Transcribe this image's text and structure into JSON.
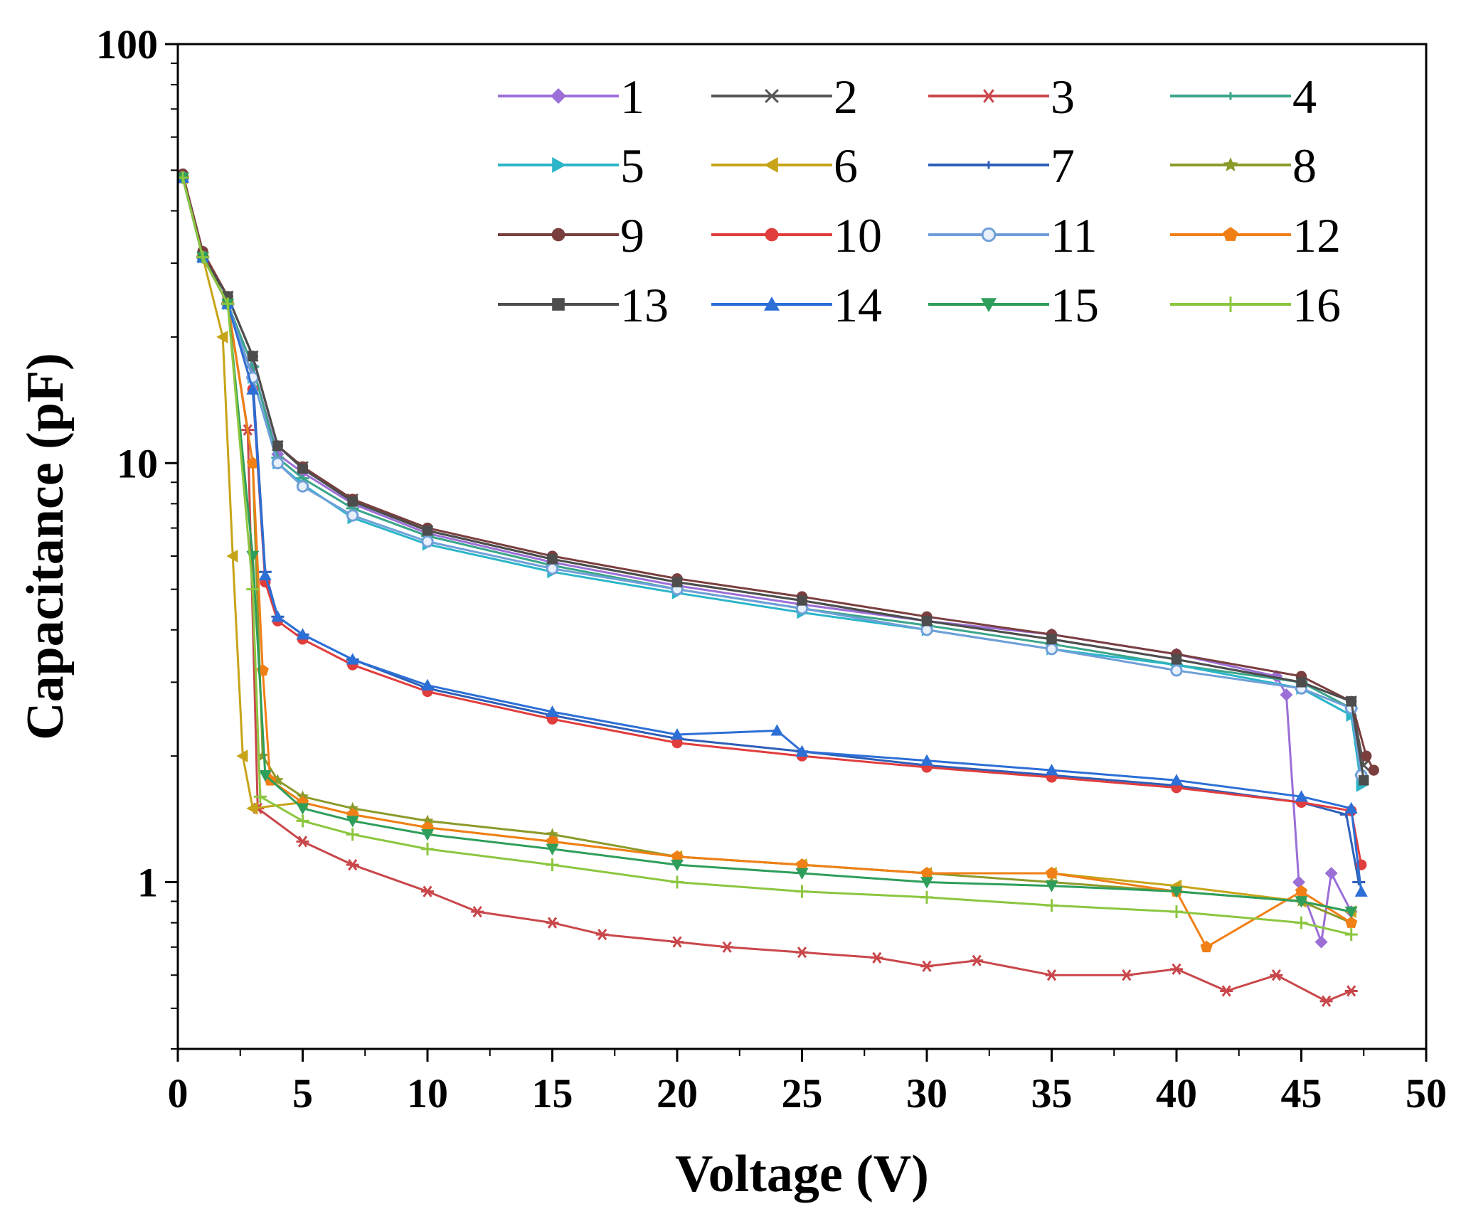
{
  "chart_data": {
    "type": "line",
    "title": "",
    "xlabel": "Voltage (V)",
    "ylabel": "Capacitance (pF)",
    "xlim": [
      0,
      50
    ],
    "ylim": [
      0.4,
      100
    ],
    "yscale": "log",
    "grid": false,
    "legend_position": "top-right",
    "x_ticks": [
      0,
      5,
      10,
      15,
      20,
      25,
      30,
      35,
      40,
      45,
      50
    ],
    "x_tick_labels": [
      "0",
      "5",
      "10",
      "15",
      "20",
      "25",
      "30",
      "35",
      "40",
      "45",
      "50"
    ],
    "y_ticks": [
      1,
      10,
      100
    ],
    "y_tick_labels": [
      "1",
      "10",
      "100"
    ],
    "series": [
      {
        "name": "1",
        "color": "#9b6fd6",
        "marker": "diamond",
        "points": [
          [
            0.2,
            48
          ],
          [
            1,
            31
          ],
          [
            2,
            24
          ],
          [
            3,
            17
          ],
          [
            4,
            10.5
          ],
          [
            5,
            9.5
          ],
          [
            7,
            8
          ],
          [
            10,
            6.8
          ],
          [
            15,
            5.8
          ],
          [
            20,
            5.1
          ],
          [
            25,
            4.6
          ],
          [
            30,
            4.2
          ],
          [
            35,
            3.9
          ],
          [
            40,
            3.5
          ],
          [
            44,
            3.1
          ],
          [
            44.4,
            2.8
          ],
          [
            44.9,
            1.0
          ],
          [
            45.8,
            0.72
          ],
          [
            46.2,
            1.05
          ],
          [
            47,
            0.85
          ]
        ]
      },
      {
        "name": "2",
        "color": "#555555",
        "marker": "x",
        "points": [
          [
            0.2,
            48
          ],
          [
            1,
            31
          ],
          [
            2,
            25
          ],
          [
            3,
            18
          ],
          [
            4,
            11
          ],
          [
            5,
            9.8
          ],
          [
            7,
            8.2
          ],
          [
            10,
            6.9
          ],
          [
            15,
            5.9
          ],
          [
            20,
            5.2
          ],
          [
            25,
            4.7
          ],
          [
            30,
            4.2
          ],
          [
            35,
            3.8
          ],
          [
            40,
            3.4
          ],
          [
            45,
            3.0
          ],
          [
            47,
            2.7
          ],
          [
            47.5,
            1.9
          ]
        ]
      },
      {
        "name": "3",
        "color": "#c9474a",
        "marker": "star6",
        "points": [
          [
            0.2,
            48
          ],
          [
            1,
            31
          ],
          [
            2,
            24
          ],
          [
            2.8,
            12
          ],
          [
            3.2,
            1.5
          ],
          [
            5,
            1.25
          ],
          [
            7,
            1.1
          ],
          [
            10,
            0.95
          ],
          [
            12,
            0.85
          ],
          [
            15,
            0.8
          ],
          [
            17,
            0.75
          ],
          [
            20,
            0.72
          ],
          [
            22,
            0.7
          ],
          [
            25,
            0.68
          ],
          [
            28,
            0.66
          ],
          [
            30,
            0.63
          ],
          [
            32,
            0.65
          ],
          [
            35,
            0.6
          ],
          [
            38,
            0.6
          ],
          [
            40,
            0.62
          ],
          [
            42,
            0.55
          ],
          [
            44,
            0.6
          ],
          [
            46,
            0.52
          ],
          [
            47,
            0.55
          ]
        ]
      },
      {
        "name": "4",
        "color": "#3aa58a",
        "marker": "dash",
        "points": [
          [
            0.2,
            48
          ],
          [
            1,
            31
          ],
          [
            2,
            24
          ],
          [
            3,
            17
          ],
          [
            4,
            10.3
          ],
          [
            5,
            9.2
          ],
          [
            7,
            7.8
          ],
          [
            10,
            6.7
          ],
          [
            15,
            5.7
          ],
          [
            20,
            5.0
          ],
          [
            25,
            4.5
          ],
          [
            30,
            4.1
          ],
          [
            35,
            3.7
          ],
          [
            40,
            3.3
          ],
          [
            45,
            3.0
          ],
          [
            47,
            2.6
          ],
          [
            47.4,
            1.8
          ]
        ]
      },
      {
        "name": "5",
        "color": "#2bb5c8",
        "marker": "triangle-right",
        "points": [
          [
            0.2,
            48
          ],
          [
            1,
            31
          ],
          [
            2,
            24
          ],
          [
            3,
            16
          ],
          [
            4,
            10
          ],
          [
            5,
            8.9
          ],
          [
            7,
            7.4
          ],
          [
            10,
            6.4
          ],
          [
            15,
            5.5
          ],
          [
            20,
            4.9
          ],
          [
            25,
            4.4
          ],
          [
            30,
            4.0
          ],
          [
            35,
            3.6
          ],
          [
            40,
            3.3
          ],
          [
            45,
            2.9
          ],
          [
            47,
            2.5
          ],
          [
            47.4,
            1.7
          ]
        ]
      },
      {
        "name": "6",
        "color": "#c7a418",
        "marker": "triangle-left",
        "points": [
          [
            0.2,
            48
          ],
          [
            1,
            31
          ],
          [
            1.8,
            20
          ],
          [
            2.2,
            6
          ],
          [
            2.6,
            2.0
          ],
          [
            3,
            1.5
          ],
          [
            5,
            1.55
          ],
          [
            7,
            1.45
          ],
          [
            10,
            1.35
          ],
          [
            15,
            1.25
          ],
          [
            20,
            1.15
          ],
          [
            25,
            1.1
          ],
          [
            30,
            1.05
          ],
          [
            35,
            1.05
          ],
          [
            40,
            0.98
          ],
          [
            45,
            0.9
          ],
          [
            47,
            0.85
          ]
        ]
      },
      {
        "name": "7",
        "color": "#2d5fb8",
        "marker": "dash",
        "points": [
          [
            0.2,
            48
          ],
          [
            1,
            31
          ],
          [
            2,
            24
          ],
          [
            3,
            16
          ],
          [
            3.5,
            5.5
          ],
          [
            4,
            4.3
          ],
          [
            5,
            3.9
          ],
          [
            7,
            3.4
          ],
          [
            10,
            2.9
          ],
          [
            15,
            2.5
          ],
          [
            20,
            2.2
          ],
          [
            25,
            2.05
          ],
          [
            30,
            1.9
          ],
          [
            35,
            1.8
          ],
          [
            40,
            1.7
          ],
          [
            45,
            1.55
          ],
          [
            46.8,
            1.45
          ],
          [
            47.3,
            1.0
          ]
        ]
      },
      {
        "name": "8",
        "color": "#8c9a2a",
        "marker": "star",
        "points": [
          [
            0.2,
            48
          ],
          [
            1,
            31
          ],
          [
            2,
            24
          ],
          [
            3,
            10
          ],
          [
            3.4,
            2.0
          ],
          [
            4,
            1.75
          ],
          [
            5,
            1.6
          ],
          [
            7,
            1.5
          ],
          [
            10,
            1.4
          ],
          [
            15,
            1.3
          ],
          [
            20,
            1.15
          ],
          [
            25,
            1.1
          ],
          [
            30,
            1.05
          ],
          [
            35,
            1.0
          ],
          [
            40,
            0.95
          ],
          [
            45,
            0.9
          ],
          [
            47,
            0.8
          ]
        ]
      },
      {
        "name": "9",
        "color": "#7a3e3e",
        "marker": "circle",
        "points": [
          [
            0.2,
            49
          ],
          [
            1,
            32
          ],
          [
            2,
            25
          ],
          [
            3,
            18
          ],
          [
            4,
            11
          ],
          [
            5,
            9.8
          ],
          [
            7,
            8.2
          ],
          [
            10,
            7.0
          ],
          [
            15,
            6.0
          ],
          [
            20,
            5.3
          ],
          [
            25,
            4.8
          ],
          [
            30,
            4.3
          ],
          [
            35,
            3.9
          ],
          [
            40,
            3.5
          ],
          [
            45,
            3.1
          ],
          [
            47,
            2.7
          ],
          [
            47.6,
            2.0
          ],
          [
            47.9,
            1.85
          ]
        ]
      },
      {
        "name": "10",
        "color": "#e03d3d",
        "marker": "circle",
        "points": [
          [
            0.2,
            48
          ],
          [
            1,
            31
          ],
          [
            2,
            24
          ],
          [
            3,
            15
          ],
          [
            3.5,
            5.2
          ],
          [
            4,
            4.2
          ],
          [
            5,
            3.8
          ],
          [
            7,
            3.3
          ],
          [
            10,
            2.85
          ],
          [
            15,
            2.45
          ],
          [
            20,
            2.15
          ],
          [
            25,
            2.0
          ],
          [
            30,
            1.88
          ],
          [
            35,
            1.78
          ],
          [
            40,
            1.68
          ],
          [
            45,
            1.55
          ],
          [
            47,
            1.48
          ],
          [
            47.4,
            1.1
          ]
        ]
      },
      {
        "name": "11",
        "color": "#6f9fd8",
        "marker": "circle-open",
        "points": [
          [
            0.2,
            48
          ],
          [
            1,
            31
          ],
          [
            2,
            24
          ],
          [
            3,
            16
          ],
          [
            4,
            10
          ],
          [
            5,
            8.8
          ],
          [
            7,
            7.5
          ],
          [
            10,
            6.5
          ],
          [
            15,
            5.6
          ],
          [
            20,
            5.0
          ],
          [
            25,
            4.5
          ],
          [
            30,
            4.0
          ],
          [
            35,
            3.6
          ],
          [
            40,
            3.2
          ],
          [
            45,
            2.9
          ],
          [
            47,
            2.6
          ],
          [
            47.4,
            1.8
          ]
        ]
      },
      {
        "name": "12",
        "color": "#f07f16",
        "marker": "pentagon",
        "points": [
          [
            0.2,
            48
          ],
          [
            1,
            31
          ],
          [
            2,
            24
          ],
          [
            3,
            10
          ],
          [
            3.4,
            3.2
          ],
          [
            3.7,
            1.75
          ],
          [
            5,
            1.55
          ],
          [
            7,
            1.45
          ],
          [
            10,
            1.35
          ],
          [
            15,
            1.25
          ],
          [
            20,
            1.15
          ],
          [
            25,
            1.1
          ],
          [
            30,
            1.05
          ],
          [
            35,
            1.05
          ],
          [
            40,
            0.95
          ],
          [
            41.2,
            0.7
          ],
          [
            45,
            0.95
          ],
          [
            47,
            0.8
          ]
        ]
      },
      {
        "name": "13",
        "color": "#4d4d4d",
        "marker": "square",
        "points": [
          [
            0.2,
            48
          ],
          [
            1,
            31
          ],
          [
            2,
            25
          ],
          [
            3,
            18
          ],
          [
            4,
            11
          ],
          [
            5,
            9.7
          ],
          [
            7,
            8.1
          ],
          [
            10,
            6.9
          ],
          [
            15,
            5.9
          ],
          [
            20,
            5.2
          ],
          [
            25,
            4.7
          ],
          [
            30,
            4.2
          ],
          [
            35,
            3.8
          ],
          [
            40,
            3.4
          ],
          [
            45,
            3.0
          ],
          [
            47,
            2.7
          ],
          [
            47.5,
            1.75
          ]
        ]
      },
      {
        "name": "14",
        "color": "#2c6fd6",
        "marker": "triangle-up",
        "points": [
          [
            0.2,
            48
          ],
          [
            1,
            31
          ],
          [
            2,
            24
          ],
          [
            3,
            15
          ],
          [
            3.5,
            5.4
          ],
          [
            4,
            4.3
          ],
          [
            5,
            3.9
          ],
          [
            7,
            3.4
          ],
          [
            10,
            2.95
          ],
          [
            15,
            2.55
          ],
          [
            20,
            2.25
          ],
          [
            24,
            2.3
          ],
          [
            25,
            2.05
          ],
          [
            30,
            1.95
          ],
          [
            35,
            1.85
          ],
          [
            40,
            1.75
          ],
          [
            45,
            1.6
          ],
          [
            47,
            1.5
          ],
          [
            47.4,
            0.95
          ]
        ]
      },
      {
        "name": "15",
        "color": "#2e9e5b",
        "marker": "triangle-down",
        "points": [
          [
            0.2,
            48
          ],
          [
            1,
            31
          ],
          [
            2,
            24
          ],
          [
            3,
            6
          ],
          [
            3.5,
            1.8
          ],
          [
            5,
            1.5
          ],
          [
            7,
            1.4
          ],
          [
            10,
            1.3
          ],
          [
            15,
            1.2
          ],
          [
            20,
            1.1
          ],
          [
            25,
            1.05
          ],
          [
            30,
            1.0
          ],
          [
            35,
            0.98
          ],
          [
            40,
            0.95
          ],
          [
            45,
            0.9
          ],
          [
            47,
            0.85
          ]
        ]
      },
      {
        "name": "16",
        "color": "#8cc63f",
        "marker": "plus",
        "points": [
          [
            0.2,
            48
          ],
          [
            1,
            31
          ],
          [
            2,
            24
          ],
          [
            3,
            5
          ],
          [
            3.3,
            1.6
          ],
          [
            5,
            1.4
          ],
          [
            7,
            1.3
          ],
          [
            10,
            1.2
          ],
          [
            15,
            1.1
          ],
          [
            20,
            1.0
          ],
          [
            25,
            0.95
          ],
          [
            30,
            0.92
          ],
          [
            35,
            0.88
          ],
          [
            40,
            0.85
          ],
          [
            45,
            0.8
          ],
          [
            47,
            0.75
          ]
        ]
      }
    ]
  }
}
